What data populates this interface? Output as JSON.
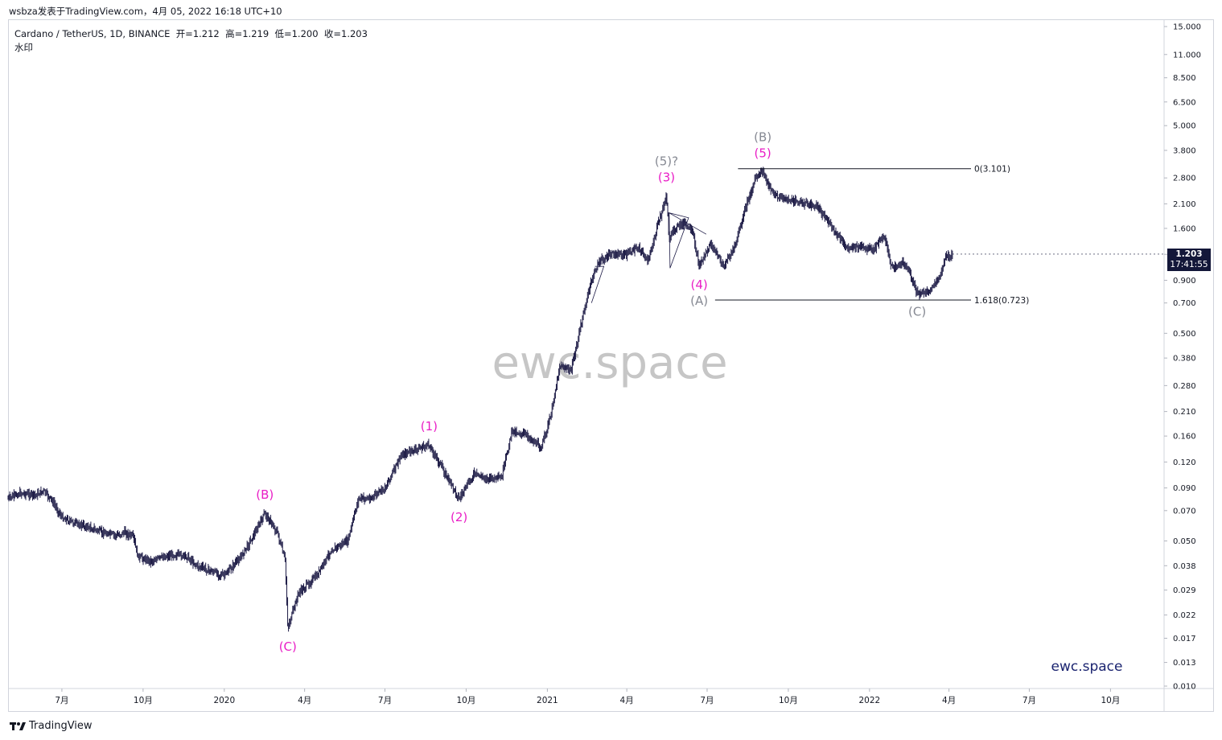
{
  "caption": "wsbza发表于TradingView.com，4月 05, 2022 16:18 UTC+10",
  "legend": {
    "symbol": "Cardano / TetherUS, 1D, BINANCE",
    "open_label": "开=",
    "open": "1.212",
    "high_label": "高=",
    "high": "1.219",
    "low_label": "低=",
    "low": "1.200",
    "close_label": "收=",
    "close": "1.203",
    "watermark_label": "水印"
  },
  "watermark_center": "ewc.space",
  "watermark_corner": "ewc.space",
  "footer_logo": "TradingView",
  "price_badge": {
    "price": "1.203",
    "countdown": "17:41:55"
  },
  "colors": {
    "candles": "#1c1a45",
    "magenta": "#e91ec6",
    "gray": "#868993",
    "watermark": "#c6c6c6",
    "brand": "#1b2470",
    "badge": "#131739"
  },
  "chart_data": {
    "type": "candlestick",
    "symbol": "Cardano / TetherUS",
    "interval": "1D",
    "exchange": "BINANCE",
    "y_scale": "log",
    "ylim": [
      0.01,
      15.0
    ],
    "y_ticks": [
      "15.000",
      "11.000",
      "8.500",
      "6.500",
      "5.000",
      "3.800",
      "2.800",
      "2.100",
      "1.600",
      "1.200",
      "0.900",
      "0.700",
      "0.500",
      "0.380",
      "0.280",
      "0.210",
      "0.160",
      "0.120",
      "0.090",
      "0.070",
      "0.050",
      "0.038",
      "0.029",
      "0.022",
      "0.017",
      "0.013",
      "0.010"
    ],
    "x_ticks": [
      "7月",
      "10月",
      "2020",
      "4月",
      "7月",
      "10月",
      "2021",
      "4月",
      "7月",
      "10月",
      "2022",
      "4月",
      "7月",
      "10月"
    ],
    "series": [
      {
        "values": [
          {
            "date": "2019-05-01",
            "price": 0.08
          },
          {
            "date": "2019-05-15",
            "price": 0.085
          },
          {
            "date": "2019-06-01",
            "price": 0.083
          },
          {
            "date": "2019-06-10",
            "price": 0.087
          },
          {
            "date": "2019-06-20",
            "price": 0.078
          },
          {
            "date": "2019-07-01",
            "price": 0.065
          },
          {
            "date": "2019-07-15",
            "price": 0.061
          },
          {
            "date": "2019-08-01",
            "price": 0.058
          },
          {
            "date": "2019-08-15",
            "price": 0.055
          },
          {
            "date": "2019-09-01",
            "price": 0.053
          },
          {
            "date": "2019-09-10",
            "price": 0.055
          },
          {
            "date": "2019-09-20",
            "price": 0.052
          },
          {
            "date": "2019-09-25",
            "price": 0.042
          },
          {
            "date": "2019-10-10",
            "price": 0.04
          },
          {
            "date": "2019-10-25",
            "price": 0.042
          },
          {
            "date": "2019-11-05",
            "price": 0.043
          },
          {
            "date": "2019-11-20",
            "price": 0.042
          },
          {
            "date": "2019-12-01",
            "price": 0.038
          },
          {
            "date": "2019-12-15",
            "price": 0.036
          },
          {
            "date": "2020-01-01",
            "price": 0.034
          },
          {
            "date": "2020-01-20",
            "price": 0.042
          },
          {
            "date": "2020-02-05",
            "price": 0.055
          },
          {
            "date": "2020-02-16",
            "price": 0.068
          },
          {
            "date": "2020-03-01",
            "price": 0.055
          },
          {
            "date": "2020-03-10",
            "price": 0.04
          },
          {
            "date": "2020-03-13",
            "price": 0.019
          },
          {
            "date": "2020-03-25",
            "price": 0.028
          },
          {
            "date": "2020-04-15",
            "price": 0.034
          },
          {
            "date": "2020-05-01",
            "price": 0.045
          },
          {
            "date": "2020-05-20",
            "price": 0.05
          },
          {
            "date": "2020-06-01",
            "price": 0.08
          },
          {
            "date": "2020-06-15",
            "price": 0.08
          },
          {
            "date": "2020-07-01",
            "price": 0.09
          },
          {
            "date": "2020-07-20",
            "price": 0.13
          },
          {
            "date": "2020-08-10",
            "price": 0.14
          },
          {
            "date": "2020-08-20",
            "price": 0.145
          },
          {
            "date": "2020-09-05",
            "price": 0.11
          },
          {
            "date": "2020-09-23",
            "price": 0.08
          },
          {
            "date": "2020-10-10",
            "price": 0.105
          },
          {
            "date": "2020-10-25",
            "price": 0.1
          },
          {
            "date": "2020-11-10",
            "price": 0.1
          },
          {
            "date": "2020-11-22",
            "price": 0.17
          },
          {
            "date": "2020-12-10",
            "price": 0.16
          },
          {
            "date": "2020-12-25",
            "price": 0.14
          },
          {
            "date": "2021-01-05",
            "price": 0.2
          },
          {
            "date": "2021-01-15",
            "price": 0.35
          },
          {
            "date": "2021-01-28",
            "price": 0.33
          },
          {
            "date": "2021-02-10",
            "price": 0.6
          },
          {
            "date": "2021-02-20",
            "price": 0.9
          },
          {
            "date": "2021-02-28",
            "price": 1.1
          },
          {
            "date": "2021-03-15",
            "price": 1.2
          },
          {
            "date": "2021-04-01",
            "price": 1.2
          },
          {
            "date": "2021-04-15",
            "price": 1.3
          },
          {
            "date": "2021-04-25",
            "price": 1.1
          },
          {
            "date": "2021-05-05",
            "price": 1.6
          },
          {
            "date": "2021-05-16",
            "price": 2.3
          },
          {
            "date": "2021-05-19",
            "price": 1.4
          },
          {
            "date": "2021-05-25",
            "price": 1.6
          },
          {
            "date": "2021-06-05",
            "price": 1.7
          },
          {
            "date": "2021-06-15",
            "price": 1.5
          },
          {
            "date": "2021-06-22",
            "price": 1.05
          },
          {
            "date": "2021-07-05",
            "price": 1.35
          },
          {
            "date": "2021-07-20",
            "price": 1.05
          },
          {
            "date": "2021-08-01",
            "price": 1.3
          },
          {
            "date": "2021-08-15",
            "price": 2.1
          },
          {
            "date": "2021-08-25",
            "price": 2.8
          },
          {
            "date": "2021-09-02",
            "price": 3.0
          },
          {
            "date": "2021-09-15",
            "price": 2.3
          },
          {
            "date": "2021-10-01",
            "price": 2.2
          },
          {
            "date": "2021-10-20",
            "price": 2.1
          },
          {
            "date": "2021-11-05",
            "price": 2.0
          },
          {
            "date": "2021-11-20",
            "price": 1.6
          },
          {
            "date": "2021-12-05",
            "price": 1.3
          },
          {
            "date": "2021-12-20",
            "price": 1.3
          },
          {
            "date": "2022-01-05",
            "price": 1.25
          },
          {
            "date": "2022-01-18",
            "price": 1.5
          },
          {
            "date": "2022-01-25",
            "price": 1.05
          },
          {
            "date": "2022-02-10",
            "price": 1.1
          },
          {
            "date": "2022-02-24",
            "price": 0.78
          },
          {
            "date": "2022-03-10",
            "price": 0.8
          },
          {
            "date": "2022-03-20",
            "price": 0.9
          },
          {
            "date": "2022-03-28",
            "price": 1.15
          },
          {
            "date": "2022-04-05",
            "price": 1.203
          }
        ]
      }
    ],
    "fib_levels": [
      {
        "label": "0(3.101)",
        "price": 3.101,
        "x_start": "2021-08-05",
        "x_end": "2022-04-10"
      },
      {
        "label": "1.618(0.723)",
        "price": 0.723,
        "x_start": "2021-07-10",
        "x_end": "2022-04-10"
      }
    ],
    "wave_labels": [
      {
        "text": "(B)",
        "date": "2020-02-16",
        "price": 0.068,
        "pos": "above",
        "color": "magenta"
      },
      {
        "text": "(C)",
        "date": "2020-03-13",
        "price": 0.019,
        "pos": "below",
        "color": "magenta"
      },
      {
        "text": "(1)",
        "date": "2020-08-20",
        "price": 0.145,
        "pos": "above",
        "color": "magenta"
      },
      {
        "text": "(2)",
        "date": "2020-09-23",
        "price": 0.08,
        "pos": "below",
        "color": "magenta"
      },
      {
        "text": "(3)",
        "date": "2021-05-16",
        "price": 2.3,
        "pos": "above",
        "color": "magenta"
      },
      {
        "text": "(5)?",
        "date": "2021-05-16",
        "price": 2.3,
        "pos": "above2",
        "color": "gray"
      },
      {
        "text": "(4)",
        "date": "2021-06-22",
        "price": 1.05,
        "pos": "below",
        "color": "magenta"
      },
      {
        "text": "(A)",
        "date": "2021-06-22",
        "price": 1.05,
        "pos": "below2",
        "color": "gray"
      },
      {
        "text": "(5)",
        "date": "2021-09-02",
        "price": 3.0,
        "pos": "above",
        "color": "magenta"
      },
      {
        "text": "(B)",
        "date": "2021-09-02",
        "price": 3.0,
        "pos": "above2",
        "color": "gray"
      },
      {
        "text": "(C)",
        "date": "2022-02-24",
        "price": 0.78,
        "pos": "below",
        "color": "gray"
      }
    ]
  }
}
